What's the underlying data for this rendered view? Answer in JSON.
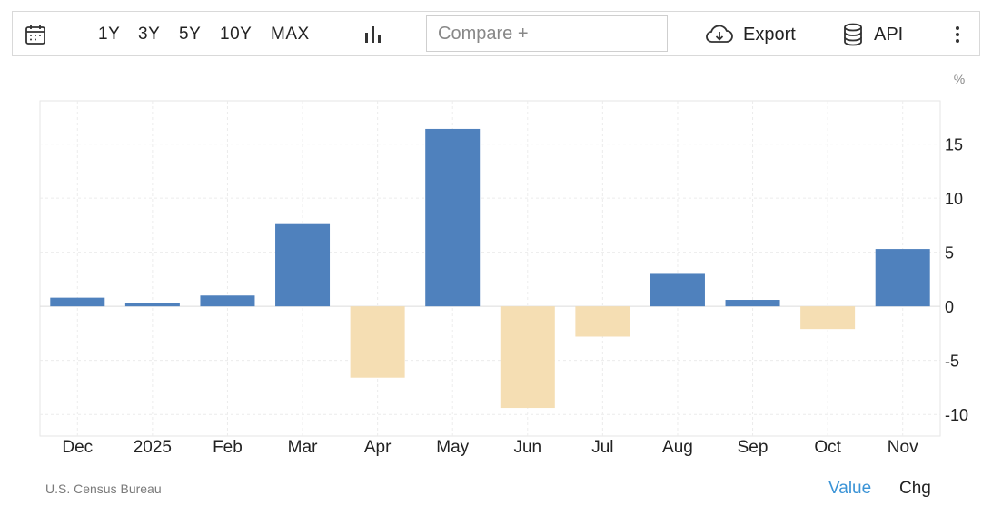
{
  "toolbar": {
    "ranges": [
      "1Y",
      "3Y",
      "5Y",
      "10Y",
      "MAX"
    ],
    "compare_placeholder": "Compare +",
    "export_label": "Export",
    "api_label": "API"
  },
  "footer": {
    "source": "U.S. Census Bureau",
    "value_tab": "Value",
    "chg_tab": "Chg"
  },
  "colors": {
    "positive": "#4f81bd",
    "negative": "#f5deb3",
    "accent": "#3a93d6"
  },
  "chart_data": {
    "type": "bar",
    "unit": "%",
    "categories": [
      "Dec",
      "2025",
      "Feb",
      "Mar",
      "Apr",
      "May",
      "Jun",
      "Jul",
      "Aug",
      "Sep",
      "Oct",
      "Nov"
    ],
    "values": [
      0.8,
      0.3,
      1.0,
      7.6,
      -6.6,
      16.4,
      -9.4,
      -2.8,
      3.0,
      0.6,
      -2.1,
      5.3
    ],
    "ylim": [
      -12,
      19
    ],
    "yticks": [
      -10,
      -5,
      0,
      5,
      10,
      15
    ],
    "ytick_labels": [
      "-10",
      "-5",
      "0",
      "5",
      "10",
      "15"
    ],
    "grid": true,
    "y_axis_side": "right"
  }
}
